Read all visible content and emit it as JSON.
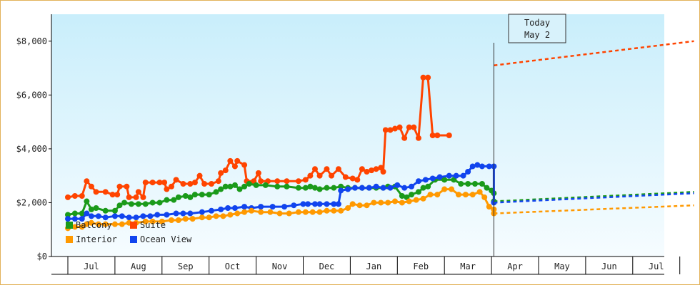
{
  "chart_data": {
    "type": "line",
    "ylim": [
      0,
      9000
    ],
    "yticks": [
      "$0",
      "$2,000",
      "$4,000",
      "$6,000",
      "$8,000"
    ],
    "ytick_values": [
      0,
      2000,
      4000,
      6000,
      8000
    ],
    "months": [
      "Jul",
      "Aug",
      "Sep",
      "Oct",
      "Nov",
      "Dec",
      "Jan",
      "Feb",
      "Mar",
      "Apr",
      "May",
      "Jun",
      "Jul"
    ],
    "today_label": [
      "Today",
      "May 2"
    ],
    "legend": [
      {
        "name": "Balcony",
        "color": "#1a9a1a"
      },
      {
        "name": "Suite",
        "color": "#ff4400"
      },
      {
        "name": "Interior",
        "color": "#ff9900"
      },
      {
        "name": "Ocean View",
        "color": "#1144ee"
      }
    ],
    "series": [
      {
        "name": "Suite",
        "color": "#ff4400",
        "points": [
          [
            -0.5,
            2200
          ],
          [
            -0.35,
            2250
          ],
          [
            -0.2,
            2250
          ],
          [
            -0.1,
            2800
          ],
          [
            0,
            2600
          ],
          [
            0.1,
            2400
          ],
          [
            0.3,
            2400
          ],
          [
            0.45,
            2300
          ],
          [
            0.55,
            2300
          ],
          [
            0.6,
            2600
          ],
          [
            0.75,
            2600
          ],
          [
            0.8,
            2200
          ],
          [
            0.95,
            2200
          ],
          [
            1.0,
            2400
          ],
          [
            1.1,
            2200
          ],
          [
            1.15,
            2750
          ],
          [
            1.3,
            2750
          ],
          [
            1.45,
            2750
          ],
          [
            1.55,
            2750
          ],
          [
            1.6,
            2500
          ],
          [
            1.7,
            2600
          ],
          [
            1.8,
            2850
          ],
          [
            1.95,
            2700
          ],
          [
            2.1,
            2700
          ],
          [
            2.2,
            2750
          ],
          [
            2.3,
            3000
          ],
          [
            2.4,
            2700
          ],
          [
            2.55,
            2700
          ],
          [
            2.7,
            2800
          ],
          [
            2.75,
            3100
          ],
          [
            2.85,
            3200
          ],
          [
            2.95,
            3550
          ],
          [
            3.05,
            3350
          ],
          [
            3.1,
            3550
          ],
          [
            3.25,
            3400
          ],
          [
            3.3,
            2800
          ],
          [
            3.45,
            2800
          ],
          [
            3.55,
            3100
          ],
          [
            3.6,
            2800
          ],
          [
            3.75,
            2800
          ],
          [
            3.95,
            2800
          ],
          [
            4.15,
            2800
          ],
          [
            4.4,
            2800
          ],
          [
            4.55,
            2850
          ],
          [
            4.65,
            3000
          ],
          [
            4.75,
            3250
          ],
          [
            4.85,
            3000
          ],
          [
            5.0,
            3250
          ],
          [
            5.1,
            3000
          ],
          [
            5.25,
            3250
          ],
          [
            5.4,
            2950
          ],
          [
            5.55,
            2900
          ],
          [
            5.65,
            2850
          ],
          [
            5.75,
            3250
          ],
          [
            5.85,
            3150
          ],
          [
            5.95,
            3200
          ],
          [
            6.05,
            3250
          ],
          [
            6.15,
            3300
          ],
          [
            6.2,
            3150
          ],
          [
            6.25,
            4700
          ],
          [
            6.35,
            4700
          ],
          [
            6.45,
            4750
          ],
          [
            6.55,
            4800
          ],
          [
            6.65,
            4400
          ],
          [
            6.75,
            4800
          ],
          [
            6.85,
            4800
          ],
          [
            6.95,
            4400
          ],
          [
            7.05,
            6650
          ],
          [
            7.15,
            6650
          ],
          [
            7.25,
            4500
          ],
          [
            7.35,
            4500
          ],
          [
            7.6,
            4500
          ]
        ]
      },
      {
        "name": "Balcony",
        "color": "#1a9a1a",
        "points": [
          [
            -0.5,
            1550
          ],
          [
            -0.35,
            1600
          ],
          [
            -0.2,
            1600
          ],
          [
            -0.1,
            2050
          ],
          [
            0,
            1750
          ],
          [
            0.1,
            1800
          ],
          [
            0.3,
            1700
          ],
          [
            0.5,
            1700
          ],
          [
            0.6,
            1900
          ],
          [
            0.7,
            2000
          ],
          [
            0.85,
            1950
          ],
          [
            1.0,
            1950
          ],
          [
            1.15,
            1950
          ],
          [
            1.3,
            2000
          ],
          [
            1.45,
            2000
          ],
          [
            1.6,
            2100
          ],
          [
            1.75,
            2100
          ],
          [
            1.85,
            2200
          ],
          [
            2.0,
            2250
          ],
          [
            2.1,
            2200
          ],
          [
            2.2,
            2300
          ],
          [
            2.35,
            2300
          ],
          [
            2.5,
            2300
          ],
          [
            2.65,
            2400
          ],
          [
            2.75,
            2500
          ],
          [
            2.85,
            2600
          ],
          [
            2.95,
            2600
          ],
          [
            3.05,
            2650
          ],
          [
            3.15,
            2500
          ],
          [
            3.25,
            2600
          ],
          [
            3.35,
            2700
          ],
          [
            3.5,
            2650
          ],
          [
            3.7,
            2650
          ],
          [
            3.95,
            2600
          ],
          [
            4.15,
            2600
          ],
          [
            4.4,
            2550
          ],
          [
            4.55,
            2550
          ],
          [
            4.65,
            2600
          ],
          [
            4.75,
            2550
          ],
          [
            4.85,
            2500
          ],
          [
            5.0,
            2550
          ],
          [
            5.15,
            2550
          ],
          [
            5.3,
            2600
          ],
          [
            5.45,
            2550
          ],
          [
            5.6,
            2550
          ],
          [
            5.75,
            2550
          ],
          [
            5.9,
            2550
          ],
          [
            6.05,
            2550
          ],
          [
            6.2,
            2550
          ],
          [
            6.3,
            2600
          ],
          [
            6.45,
            2600
          ],
          [
            6.6,
            2250
          ],
          [
            6.7,
            2200
          ],
          [
            6.8,
            2300
          ],
          [
            6.95,
            2400
          ],
          [
            7.05,
            2550
          ],
          [
            7.15,
            2600
          ],
          [
            7.3,
            2850
          ],
          [
            7.5,
            2850
          ],
          [
            7.7,
            2850
          ],
          [
            7.85,
            2700
          ],
          [
            8.0,
            2700
          ],
          [
            8.15,
            2700
          ],
          [
            8.3,
            2700
          ],
          [
            8.4,
            2550
          ],
          [
            8.5,
            2450
          ],
          [
            8.55,
            2350
          ],
          [
            8.55,
            2050
          ]
        ]
      },
      {
        "name": "Ocean View",
        "color": "#1144ee",
        "points": [
          [
            -0.5,
            1400
          ],
          [
            -0.35,
            1400
          ],
          [
            -0.2,
            1400
          ],
          [
            -0.1,
            1600
          ],
          [
            0,
            1500
          ],
          [
            0.15,
            1500
          ],
          [
            0.3,
            1450
          ],
          [
            0.5,
            1500
          ],
          [
            0.65,
            1500
          ],
          [
            0.8,
            1450
          ],
          [
            0.95,
            1450
          ],
          [
            1.1,
            1500
          ],
          [
            1.25,
            1500
          ],
          [
            1.4,
            1550
          ],
          [
            1.6,
            1550
          ],
          [
            1.8,
            1600
          ],
          [
            1.95,
            1600
          ],
          [
            2.1,
            1600
          ],
          [
            2.35,
            1650
          ],
          [
            2.55,
            1700
          ],
          [
            2.75,
            1750
          ],
          [
            2.9,
            1800
          ],
          [
            3.05,
            1800
          ],
          [
            3.25,
            1850
          ],
          [
            3.4,
            1800
          ],
          [
            3.6,
            1850
          ],
          [
            3.85,
            1850
          ],
          [
            4.1,
            1850
          ],
          [
            4.3,
            1900
          ],
          [
            4.5,
            1950
          ],
          [
            4.6,
            1950
          ],
          [
            4.75,
            1950
          ],
          [
            4.85,
            1950
          ],
          [
            5.0,
            1950
          ],
          [
            5.15,
            1950
          ],
          [
            5.25,
            1950
          ],
          [
            5.3,
            2450
          ],
          [
            5.45,
            2500
          ],
          [
            5.6,
            2550
          ],
          [
            5.75,
            2550
          ],
          [
            5.9,
            2550
          ],
          [
            6.05,
            2600
          ],
          [
            6.2,
            2550
          ],
          [
            6.35,
            2550
          ],
          [
            6.5,
            2650
          ],
          [
            6.65,
            2550
          ],
          [
            6.8,
            2600
          ],
          [
            6.95,
            2800
          ],
          [
            7.1,
            2850
          ],
          [
            7.25,
            2900
          ],
          [
            7.4,
            2950
          ],
          [
            7.6,
            3000
          ],
          [
            7.75,
            3000
          ],
          [
            7.9,
            3000
          ],
          [
            8.0,
            3150
          ],
          [
            8.1,
            3350
          ],
          [
            8.2,
            3400
          ],
          [
            8.3,
            3350
          ],
          [
            8.45,
            3350
          ],
          [
            8.55,
            3350
          ],
          [
            8.55,
            2000
          ]
        ]
      },
      {
        "name": "Interior",
        "color": "#ff9900",
        "points": [
          [
            -0.5,
            1050
          ],
          [
            -0.35,
            1100
          ],
          [
            -0.2,
            1100
          ],
          [
            -0.1,
            1200
          ],
          [
            0,
            1250
          ],
          [
            0.15,
            1200
          ],
          [
            0.3,
            1200
          ],
          [
            0.5,
            1200
          ],
          [
            0.65,
            1200
          ],
          [
            0.8,
            1250
          ],
          [
            0.95,
            1250
          ],
          [
            1.15,
            1300
          ],
          [
            1.3,
            1300
          ],
          [
            1.5,
            1300
          ],
          [
            1.7,
            1350
          ],
          [
            1.85,
            1350
          ],
          [
            2.0,
            1400
          ],
          [
            2.15,
            1400
          ],
          [
            2.35,
            1450
          ],
          [
            2.5,
            1450
          ],
          [
            2.65,
            1500
          ],
          [
            2.8,
            1500
          ],
          [
            2.95,
            1550
          ],
          [
            3.1,
            1600
          ],
          [
            3.25,
            1650
          ],
          [
            3.4,
            1700
          ],
          [
            3.6,
            1650
          ],
          [
            3.8,
            1650
          ],
          [
            4.0,
            1600
          ],
          [
            4.2,
            1600
          ],
          [
            4.4,
            1650
          ],
          [
            4.55,
            1650
          ],
          [
            4.7,
            1650
          ],
          [
            4.85,
            1650
          ],
          [
            5.0,
            1700
          ],
          [
            5.15,
            1700
          ],
          [
            5.3,
            1700
          ],
          [
            5.45,
            1800
          ],
          [
            5.55,
            1950
          ],
          [
            5.7,
            1900
          ],
          [
            5.85,
            1900
          ],
          [
            6.0,
            2000
          ],
          [
            6.15,
            2000
          ],
          [
            6.3,
            2000
          ],
          [
            6.45,
            2050
          ],
          [
            6.6,
            2000
          ],
          [
            6.75,
            2050
          ],
          [
            6.9,
            2100
          ],
          [
            7.05,
            2150
          ],
          [
            7.2,
            2300
          ],
          [
            7.35,
            2300
          ],
          [
            7.5,
            2500
          ],
          [
            7.65,
            2500
          ],
          [
            7.8,
            2300
          ],
          [
            7.95,
            2300
          ],
          [
            8.1,
            2300
          ],
          [
            8.25,
            2400
          ],
          [
            8.35,
            2200
          ],
          [
            8.45,
            1850
          ],
          [
            8.55,
            1750
          ],
          [
            8.55,
            1600
          ]
        ]
      }
    ],
    "forecast": [
      {
        "name": "Suite",
        "color": "#ff4400",
        "points": [
          [
            8.55,
            7100
          ],
          [
            12.8,
            8000
          ]
        ]
      },
      {
        "name": "Balcony",
        "color": "#1a9a1a",
        "points": [
          [
            8.55,
            2050
          ],
          [
            12.8,
            2400
          ]
        ]
      },
      {
        "name": "Ocean View",
        "color": "#1144ee",
        "points": [
          [
            8.55,
            2000
          ],
          [
            12.8,
            2350
          ]
        ]
      },
      {
        "name": "Interior",
        "color": "#ff9900",
        "points": [
          [
            8.55,
            1600
          ],
          [
            12.8,
            1900
          ]
        ]
      }
    ],
    "today_x": 8.55
  }
}
